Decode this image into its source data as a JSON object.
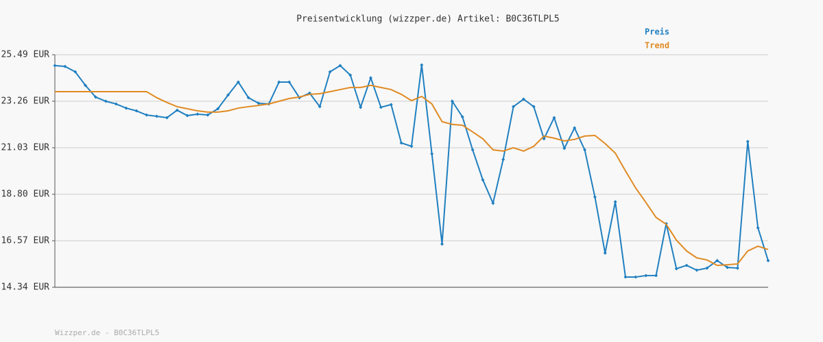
{
  "chart_data": {
    "type": "line",
    "title": "Preisentwicklung (wizzper.de) Artikel: B0C36TLPL5",
    "footer": "Wizzper.de - B0C36TLPL5",
    "categories": [
      null,
      null,
      null,
      null,
      null,
      null,
      null,
      null,
      null,
      null,
      null,
      null,
      null,
      null,
      null,
      null,
      null,
      null,
      null,
      null,
      null,
      null,
      null,
      null,
      null,
      null,
      null,
      null,
      null,
      null,
      null,
      null,
      null,
      null,
      null,
      null,
      null,
      null,
      null,
      null,
      null,
      null,
      null,
      null,
      null,
      null,
      null,
      null,
      null,
      null,
      null,
      null,
      null,
      null,
      null,
      null,
      null,
      null,
      null,
      null,
      null,
      null,
      null,
      null,
      null,
      null,
      null,
      null,
      null,
      null,
      null
    ],
    "series": [
      {
        "name": "Preis",
        "color": "#1f7fc0",
        "markers": true,
        "values": [
          24.97,
          24.93,
          24.67,
          24.02,
          23.46,
          23.26,
          23.13,
          22.93,
          22.8,
          22.6,
          22.54,
          22.47,
          22.83,
          22.57,
          22.64,
          22.6,
          22.9,
          23.56,
          24.18,
          23.43,
          23.16,
          23.13,
          24.18,
          24.18,
          23.43,
          23.65,
          23.0,
          24.67,
          24.97,
          24.51,
          22.97,
          24.38,
          22.97,
          23.1,
          21.26,
          21.1,
          25.0,
          20.74,
          16.41,
          23.26,
          22.51,
          20.93,
          19.49,
          18.37,
          20.47,
          23.0,
          23.36,
          23.0,
          21.46,
          22.47,
          21.0,
          21.98,
          20.93,
          18.67,
          15.98,
          18.44,
          14.83,
          14.83,
          14.9,
          14.9,
          17.39,
          15.23,
          15.39,
          15.16,
          15.26,
          15.62,
          15.29,
          15.26,
          21.33,
          17.19,
          15.62
        ]
      },
      {
        "name": "Trend",
        "color": "#e08a22",
        "markers": false,
        "values": [
          23.72,
          23.72,
          23.72,
          23.72,
          23.72,
          23.72,
          23.72,
          23.72,
          23.72,
          23.72,
          23.43,
          23.2,
          23.0,
          22.9,
          22.8,
          22.74,
          22.74,
          22.8,
          22.93,
          23.0,
          23.06,
          23.13,
          23.26,
          23.39,
          23.46,
          23.59,
          23.62,
          23.72,
          23.82,
          23.92,
          23.92,
          24.02,
          23.92,
          23.82,
          23.59,
          23.29,
          23.49,
          23.13,
          22.28,
          22.15,
          22.11,
          21.79,
          21.46,
          20.93,
          20.87,
          21.03,
          20.87,
          21.1,
          21.59,
          21.49,
          21.36,
          21.43,
          21.59,
          21.62,
          21.23,
          20.77,
          19.92,
          19.1,
          18.41,
          17.69,
          17.36,
          16.6,
          16.08,
          15.75,
          15.65,
          15.39,
          15.42,
          15.46,
          16.08,
          16.31,
          16.15
        ]
      }
    ],
    "ylim": [
      14.34,
      25.49
    ],
    "yticks": [
      {
        "value": 14.34,
        "label": "14.34 EUR"
      },
      {
        "value": 16.57,
        "label": "16.57 EUR"
      },
      {
        "value": 18.8,
        "label": "18.80 EUR"
      },
      {
        "value": 21.03,
        "label": "21.03 EUR"
      },
      {
        "value": 23.26,
        "label": "23.26 EUR"
      },
      {
        "value": 25.49,
        "label": "25.49 EUR"
      }
    ],
    "grid": true,
    "legend": "top-right"
  }
}
